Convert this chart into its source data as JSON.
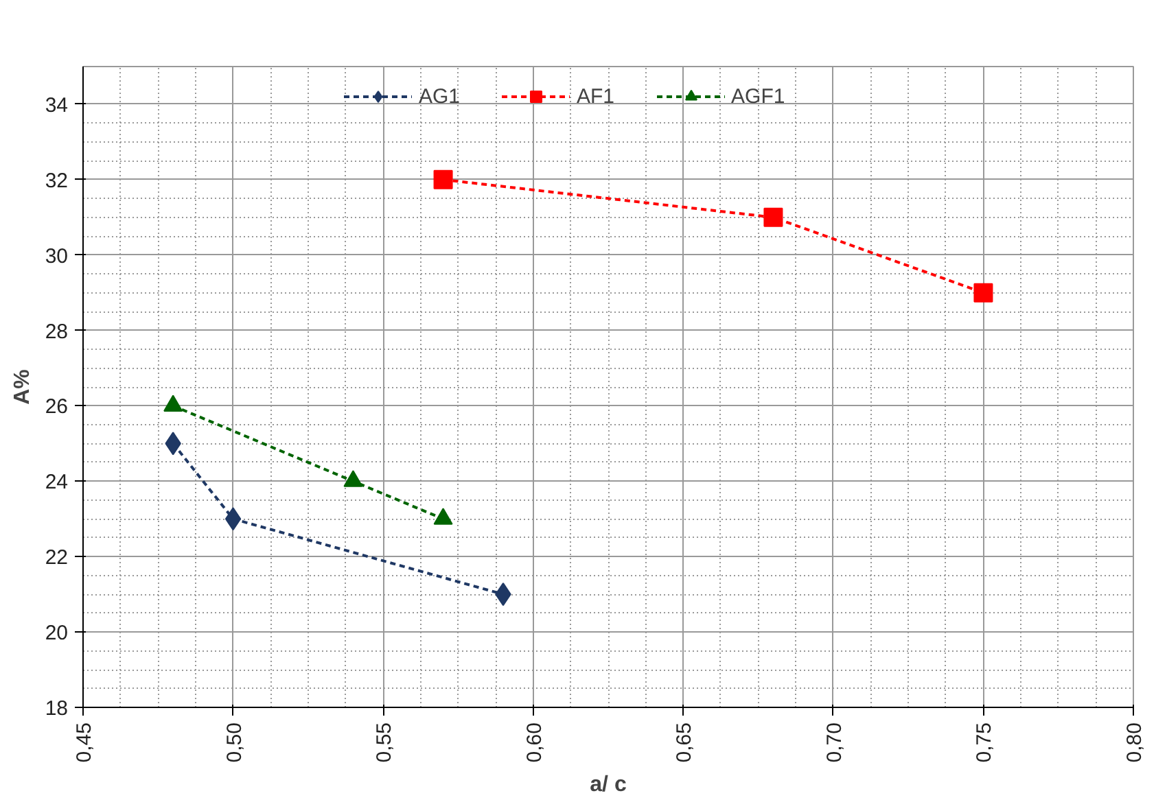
{
  "chart_data": {
    "type": "line",
    "xlabel": "a/ c",
    "ylabel": "A%",
    "xlim": [
      0.45,
      0.8
    ],
    "xticks": [
      {
        "value": 0.45,
        "label": "0,45"
      },
      {
        "value": 0.5,
        "label": "0,50"
      },
      {
        "value": 0.55,
        "label": "0,55"
      },
      {
        "value": 0.6,
        "label": "0,60"
      },
      {
        "value": 0.65,
        "label": "0,65"
      },
      {
        "value": 0.7,
        "label": "0,70"
      },
      {
        "value": 0.75,
        "label": "0,75"
      },
      {
        "value": 0.8,
        "label": "0,80"
      }
    ],
    "ylim": [
      18,
      35
    ],
    "yticks": [
      18,
      20,
      22,
      24,
      26,
      28,
      30,
      32,
      34
    ],
    "grid": true,
    "legend": "top",
    "line_style": "dashed",
    "series": [
      {
        "name": "AG1",
        "color": "#1f3864",
        "marker": "diamond",
        "x": [
          0.48,
          0.5,
          0.59
        ],
        "values": [
          25,
          23,
          21
        ]
      },
      {
        "name": "AF1",
        "color": "#ff0000",
        "marker": "square",
        "x": [
          0.57,
          0.68,
          0.75
        ],
        "values": [
          32,
          31,
          29
        ]
      },
      {
        "name": "AGF1",
        "color": "#006400",
        "marker": "triangle",
        "x": [
          0.48,
          0.54,
          0.57
        ],
        "values": [
          26,
          24,
          23
        ]
      }
    ]
  }
}
